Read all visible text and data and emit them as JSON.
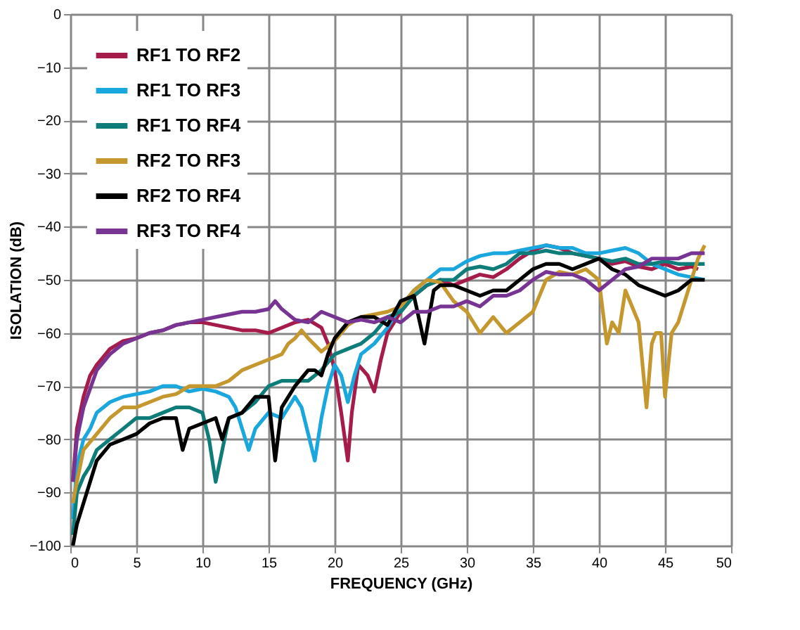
{
  "chart_data": {
    "type": "line",
    "xlabel": "FREQUENCY (GHz)",
    "ylabel": "ISOLATION (dB)",
    "xlim": [
      0,
      50
    ],
    "xticks": [
      0,
      5,
      10,
      15,
      20,
      25,
      30,
      35,
      40,
      45,
      50
    ],
    "ylim": [
      -100,
      0
    ],
    "yticks": [
      -100,
      -90,
      -80,
      -70,
      -60,
      -50,
      -40,
      -30,
      -20,
      -10,
      0
    ],
    "grid": true,
    "legend": "top left",
    "marker": "none",
    "line_style": "solid",
    "series": [
      {
        "name": "RF1 TO RF2",
        "color": "#a51c4a",
        "x": [
          0.2,
          0.5,
          1,
          1.5,
          2,
          3,
          4,
          5,
          6,
          7,
          8,
          9,
          10,
          11,
          12,
          13,
          14,
          15,
          16,
          17,
          18,
          19,
          19.5,
          20,
          20.5,
          21,
          21.3,
          21.8,
          22.5,
          23,
          23.5,
          24,
          25,
          26,
          27,
          28,
          29,
          30,
          31,
          32,
          33,
          34,
          35,
          36,
          37,
          38,
          39,
          40,
          41,
          42,
          43,
          44,
          45,
          46,
          47,
          47.5
        ],
        "values": [
          -88,
          -78,
          -72,
          -68,
          -66,
          -63,
          -61.5,
          -61,
          -60,
          -59.5,
          -58.5,
          -58,
          -58,
          -58.5,
          -59,
          -59.5,
          -59.5,
          -60,
          -59,
          -58,
          -57.5,
          -59,
          -62,
          -67,
          -75,
          -84,
          -75,
          -66,
          -68,
          -71,
          -65,
          -60,
          -56,
          -53,
          -51,
          -50,
          -51,
          -50,
          -49,
          -49.5,
          -48,
          -46,
          -44.5,
          -43.5,
          -44,
          -45,
          -45.5,
          -46,
          -47,
          -46.5,
          -47.5,
          -48,
          -47,
          -48,
          -47.5,
          -48
        ]
      },
      {
        "name": "RF1 TO RF3",
        "color": "#1aa7dd",
        "x": [
          0.2,
          0.5,
          1,
          1.5,
          2,
          3,
          4,
          5,
          6,
          7,
          8,
          9,
          10,
          11,
          12,
          12.5,
          13,
          13.5,
          14,
          15,
          16,
          17,
          17.5,
          18,
          18.5,
          19,
          19.5,
          20,
          20.5,
          21,
          21.5,
          22,
          23,
          24,
          25,
          26,
          27,
          28,
          29,
          30,
          31,
          32,
          33,
          34,
          35,
          36,
          37,
          38,
          39,
          40,
          41,
          42,
          43,
          44,
          45,
          46,
          47,
          48
        ],
        "values": [
          -95,
          -85,
          -80,
          -78,
          -75,
          -73,
          -72,
          -71.5,
          -71,
          -70,
          -70,
          -71,
          -70.5,
          -71,
          -72,
          -74,
          -78,
          -82,
          -78,
          -75,
          -76,
          -72,
          -74,
          -79,
          -84,
          -76,
          -70,
          -66,
          -68,
          -73,
          -68,
          -64,
          -62,
          -59,
          -55,
          -52,
          -50,
          -48,
          -48,
          -46.5,
          -45.5,
          -45,
          -45,
          -44.5,
          -44,
          -43.5,
          -44,
          -44,
          -45,
          -45,
          -44.5,
          -44,
          -45,
          -47,
          -48,
          -49,
          -49.5,
          -50
        ]
      },
      {
        "name": "RF1 TO RF4",
        "color": "#0e7d7a",
        "x": [
          0.2,
          0.5,
          1,
          1.5,
          2,
          3,
          4,
          5,
          6,
          7,
          8,
          9,
          10,
          10.5,
          11,
          11.5,
          12,
          13,
          14,
          15,
          16,
          17,
          18,
          19,
          20,
          21,
          22,
          23,
          24,
          25,
          26,
          27,
          28,
          29,
          30,
          31,
          32,
          33,
          34,
          35,
          36,
          37,
          38,
          39,
          40,
          41,
          42,
          43,
          44,
          45,
          46,
          47,
          48
        ],
        "values": [
          -98,
          -90,
          -87,
          -85,
          -82,
          -80,
          -78,
          -76,
          -76,
          -75,
          -74,
          -74,
          -75,
          -80,
          -88,
          -82,
          -76,
          -75,
          -73,
          -70,
          -69,
          -69,
          -69,
          -67,
          -64,
          -63,
          -62,
          -60,
          -57,
          -56,
          -53,
          -51,
          -50,
          -50,
          -48,
          -47.5,
          -48,
          -47,
          -45,
          -45,
          -44.5,
          -45,
          -45,
          -45.5,
          -46,
          -46.5,
          -46,
          -47,
          -47,
          -46.5,
          -47,
          -47,
          -47
        ]
      },
      {
        "name": "RF2 TO RF3",
        "color": "#c4982e",
        "x": [
          0.2,
          0.5,
          1,
          2,
          3,
          4,
          5,
          6,
          7,
          8,
          9,
          10,
          11,
          12,
          13,
          14,
          15,
          16,
          16.5,
          17,
          17.5,
          18,
          19,
          20,
          21,
          22,
          23,
          24,
          25,
          26,
          27,
          28,
          29,
          30,
          31,
          32,
          33,
          34,
          35,
          36,
          37,
          38,
          39,
          40,
          40.6,
          41,
          41.5,
          42,
          43,
          43.6,
          44,
          44.3,
          44.7,
          45,
          45.5,
          46,
          47,
          47.5,
          48
        ],
        "values": [
          -92,
          -88,
          -82,
          -79,
          -76,
          -74,
          -74,
          -73,
          -72,
          -71.5,
          -70,
          -70,
          -70,
          -69,
          -67,
          -66,
          -65,
          -64,
          -62,
          -61,
          -59.5,
          -61,
          -63.5,
          -61.5,
          -58.5,
          -57,
          -56.5,
          -56,
          -55,
          -52,
          -50,
          -50.5,
          -54,
          -56,
          -60,
          -57,
          -60,
          -58,
          -56,
          -50,
          -48.5,
          -49,
          -48,
          -50,
          -62,
          -58,
          -60,
          -52,
          -58,
          -74,
          -62,
          -60,
          -60,
          -72,
          -60,
          -58,
          -50,
          -46,
          -43.5
        ]
      },
      {
        "name": "RF2 TO RF4",
        "color": "#000000",
        "x": [
          0.2,
          0.5,
          1,
          1.5,
          2,
          3,
          4,
          5,
          6,
          7,
          8,
          8.5,
          9,
          10,
          11,
          11.5,
          12,
          13,
          14,
          15,
          15.5,
          16,
          17,
          18,
          18.5,
          19,
          19.5,
          20,
          21,
          22,
          23,
          24,
          25,
          26,
          26.8,
          27.5,
          28,
          29,
          30,
          31,
          32,
          33,
          34,
          35,
          36,
          37,
          38,
          39,
          40,
          41,
          42,
          43,
          44,
          45,
          46,
          47,
          48
        ],
        "values": [
          -100,
          -96,
          -92,
          -88,
          -84,
          -81,
          -80,
          -79,
          -77,
          -76,
          -76,
          -82,
          -78,
          -77,
          -76,
          -80,
          -76,
          -75,
          -72,
          -72,
          -84,
          -74,
          -70,
          -67,
          -67,
          -68,
          -64,
          -61,
          -58,
          -57,
          -57,
          -58.5,
          -54,
          -53,
          -62,
          -52,
          -51,
          -51,
          -52,
          -53,
          -52,
          -52,
          -50,
          -48,
          -47,
          -47,
          -48,
          -47,
          -46,
          -48,
          -49,
          -51,
          -52,
          -53,
          -52,
          -50,
          -50
        ]
      },
      {
        "name": "RF3 TO RF4",
        "color": "#773493",
        "x": [
          0.2,
          0.5,
          1,
          2,
          3,
          4,
          5,
          6,
          7,
          8,
          9,
          10,
          11,
          12,
          13,
          14,
          15,
          15.5,
          16,
          17,
          18,
          19,
          20,
          21,
          22,
          23,
          24,
          25,
          26,
          27,
          28,
          29,
          30,
          31,
          32,
          33,
          34,
          35,
          36,
          37,
          38,
          39,
          40,
          41,
          42,
          43,
          44,
          45,
          46,
          47,
          48
        ],
        "values": [
          -88,
          -80,
          -74,
          -67,
          -64,
          -62,
          -61,
          -60,
          -59.5,
          -58.5,
          -58,
          -57.5,
          -57,
          -56.5,
          -56,
          -56,
          -55.5,
          -54,
          -55.5,
          -57.5,
          -58,
          -56,
          -57,
          -58,
          -57.5,
          -58,
          -57,
          -58,
          -56,
          -56,
          -55,
          -55,
          -54,
          -55,
          -53,
          -53,
          -52,
          -50,
          -48.5,
          -49,
          -49,
          -50,
          -52,
          -50,
          -48,
          -47.5,
          -46,
          -46,
          -46,
          -45,
          -45
        ]
      }
    ]
  }
}
